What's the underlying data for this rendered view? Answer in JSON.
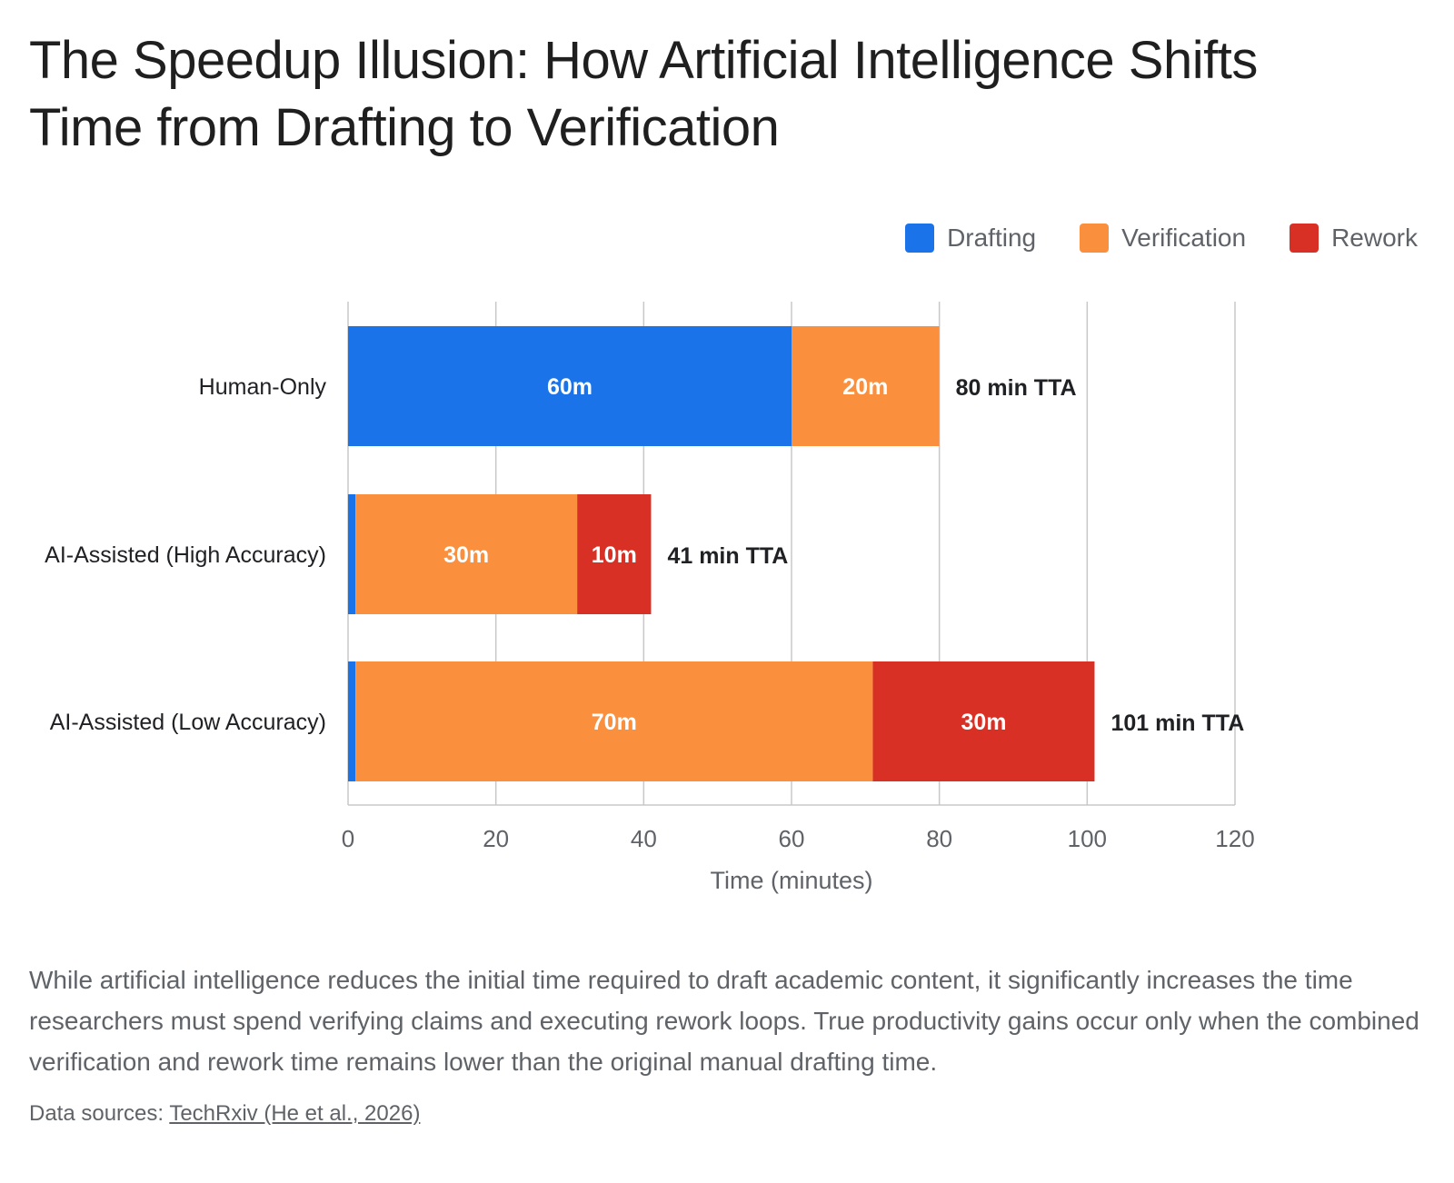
{
  "title": {
    "line1": "The Speedup Illusion: How Artificial Intelligence Shifts",
    "line2": "Time from Drafting to Verification"
  },
  "colors": {
    "drafting": "#1a73e8",
    "verification": "#fa903e",
    "rework": "#d93025",
    "grid": "#c8c8c8",
    "text": "#202124"
  },
  "chart_data": {
    "type": "bar",
    "orientation": "horizontal",
    "stacked": true,
    "categories": [
      "Human-Only",
      "AI-Assisted (High Accuracy)",
      "AI-Assisted (Low Accuracy)"
    ],
    "series": [
      {
        "name": "Drafting",
        "values": [
          60,
          1,
          1
        ],
        "labels": [
          "60m",
          "",
          ""
        ]
      },
      {
        "name": "Verification",
        "values": [
          20,
          30,
          70
        ],
        "labels": [
          "20m",
          "30m",
          "70m"
        ]
      },
      {
        "name": "Rework",
        "values": [
          0,
          10,
          30
        ],
        "labels": [
          "",
          "10m",
          "30m"
        ]
      }
    ],
    "totals": [
      "80 min TTA",
      "41 min TTA",
      "101 min TTA"
    ],
    "xlabel": "Time (minutes)",
    "ylabel": "",
    "xlim": [
      0,
      120
    ],
    "xticks": [
      "0",
      "20",
      "40",
      "60",
      "80",
      "100",
      "120"
    ],
    "grid": true,
    "legend_position": "top-right"
  },
  "description": "While artificial intelligence reduces the initial time required to draft academic content, it significantly increases the time researchers must spend verifying claims and executing rework loops. True productivity gains occur only when the combined verification and rework time remains lower than the original manual drafting time.",
  "source": {
    "prefix": "Data sources: ",
    "link_text": "TechRxiv (He et al., 2026)"
  }
}
